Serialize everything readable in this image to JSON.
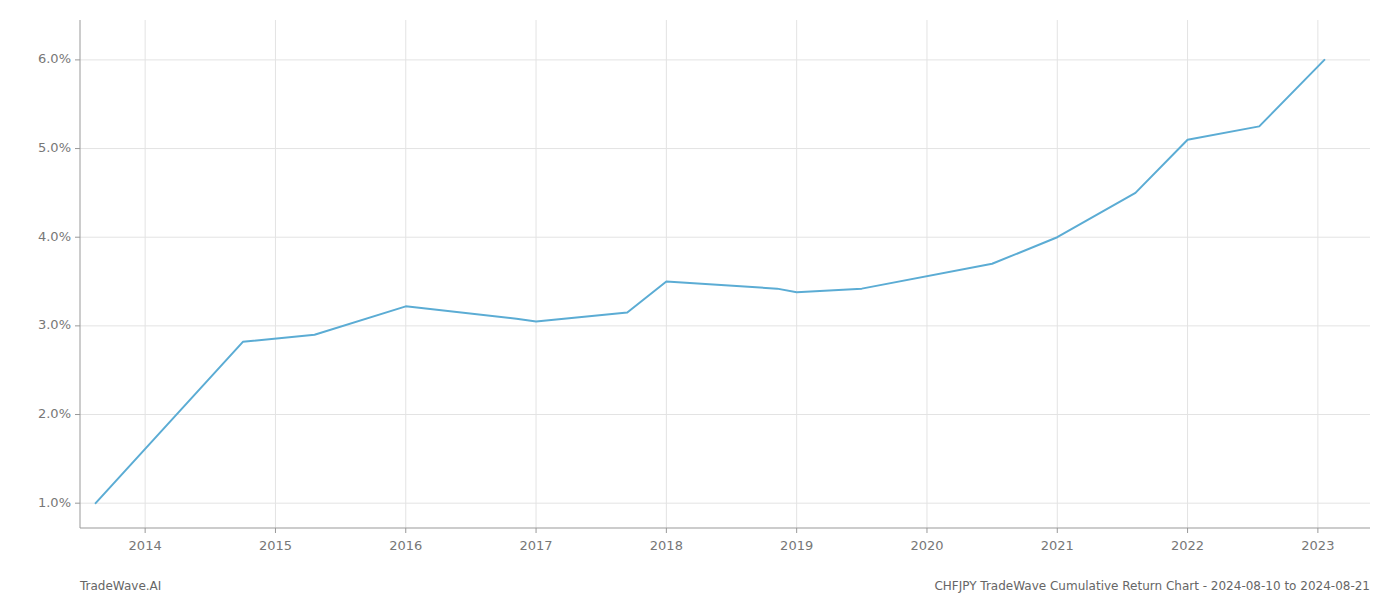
{
  "chart_data": {
    "type": "line",
    "x": [
      2013.62,
      2014.75,
      2015.3,
      2016.0,
      2016.85,
      2017.0,
      2017.7,
      2018.0,
      2018.85,
      2019.0,
      2019.5,
      2020.5,
      2021.0,
      2021.6,
      2022.0,
      2022.55,
      2023.05
    ],
    "values": [
      1.0,
      2.82,
      2.9,
      3.22,
      3.08,
      3.05,
      3.15,
      3.5,
      3.42,
      3.38,
      3.42,
      3.7,
      4.0,
      4.5,
      5.1,
      5.25,
      6.0
    ],
    "color": "#5bacd4",
    "xlim": [
      2013.5,
      2023.4
    ],
    "ylim": [
      0.72,
      6.45
    ],
    "xticks": [
      2014,
      2015,
      2016,
      2017,
      2018,
      2019,
      2020,
      2021,
      2022,
      2023
    ],
    "yticks": [
      {
        "value": 1.0,
        "label": "1.0%"
      },
      {
        "value": 2.0,
        "label": "2.0%"
      },
      {
        "value": 3.0,
        "label": "3.0%"
      },
      {
        "value": 4.0,
        "label": "4.0%"
      },
      {
        "value": 5.0,
        "label": "5.0%"
      },
      {
        "value": 6.0,
        "label": "6.0%"
      }
    ],
    "grid": true,
    "annotations": [
      "TradeWave.AI",
      "CHFJPY TradeWave Cumulative Return Chart - 2024-08-10 to 2024-08-21"
    ]
  }
}
